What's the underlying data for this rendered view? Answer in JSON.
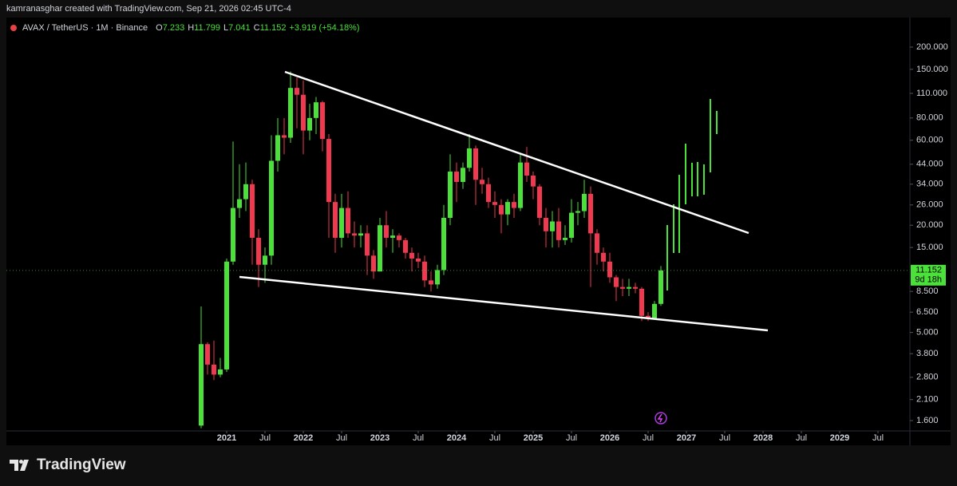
{
  "caption": "kamranasghar created with TradingView.com, Sep 21, 2026 02:45 UTC-4",
  "footer": "TradingView",
  "chart_data": {
    "type": "candlestick",
    "symbol": "AVAX / TetherUS · 1M · Binance",
    "ohlc_legend": [
      {
        "label": "O",
        "value": 7.233
      },
      {
        "label": "H",
        "value": 11.799
      },
      {
        "label": "L",
        "value": 7.041
      },
      {
        "label": "C",
        "value": 11.152
      }
    ],
    "change": "+3.919 (+54.18%)",
    "x": [
      "2020-09",
      "2020-10",
      "2020-11",
      "2020-12",
      "2021-01",
      "2021-02",
      "2021-03",
      "2021-04",
      "2021-05",
      "2021-06",
      "2021-07",
      "2021-08",
      "2021-09",
      "2021-10",
      "2021-11",
      "2021-12",
      "2022-01",
      "2022-02",
      "2022-03",
      "2022-04",
      "2022-05",
      "2022-06",
      "2022-07",
      "2022-08",
      "2022-09",
      "2022-10",
      "2022-11",
      "2022-12",
      "2023-01",
      "2023-02",
      "2023-03",
      "2023-04",
      "2023-05",
      "2023-06",
      "2023-07",
      "2023-08",
      "2023-09",
      "2023-10",
      "2023-11",
      "2023-12",
      "2024-01",
      "2024-02",
      "2024-03",
      "2024-04",
      "2024-05",
      "2024-06",
      "2024-07",
      "2024-08",
      "2024-09",
      "2024-10",
      "2024-11",
      "2024-12",
      "2025-01",
      "2025-02",
      "2025-03",
      "2025-04",
      "2025-05",
      "2025-06",
      "2025-07",
      "2025-08",
      "2025-09",
      "2025-10",
      "2025-11",
      "2025-12",
      "2026-01",
      "2026-02",
      "2026-03",
      "2026-04",
      "2026-05",
      "2026-06",
      "2026-07",
      "2026-08",
      "2026-09"
    ],
    "open": [
      1.5,
      4.3,
      3.3,
      2.9,
      3.1,
      12.5,
      25,
      28,
      34,
      17,
      12,
      13.5,
      46,
      64,
      62,
      118,
      108,
      68,
      80,
      98,
      61,
      27,
      17,
      25,
      18,
      17.5,
      18,
      13.5,
      11,
      20,
      17,
      17.5,
      16.5,
      14,
      13,
      12.5,
      9.8,
      9.3,
      11.2,
      22,
      40,
      35,
      42,
      54,
      36,
      34,
      27,
      26,
      23,
      27,
      25,
      45,
      38,
      33,
      22,
      18.5,
      21,
      16.5,
      17,
      23.5,
      24,
      30,
      18,
      14,
      12.5,
      10.2,
      9,
      8.8,
      9,
      8.8,
      6.2,
      6.0,
      7.233
    ],
    "high": [
      7.0,
      4.4,
      4.5,
      3.6,
      13,
      59,
      44,
      45,
      36,
      19,
      15,
      64,
      80,
      80,
      146,
      135,
      130,
      96,
      105,
      100,
      65,
      30,
      30,
      31,
      21,
      20,
      20,
      14.5,
      22,
      24,
      19,
      18,
      17,
      15,
      14,
      13.5,
      11,
      12,
      26,
      50,
      45,
      45,
      65,
      56,
      42,
      37,
      31,
      28,
      28,
      30,
      50,
      55,
      40,
      34,
      25,
      24,
      25,
      20,
      28,
      27,
      36,
      33,
      19,
      15,
      14,
      10.5,
      10,
      10,
      9.5,
      9,
      6.5,
      7.5,
      11.799
    ],
    "low": [
      1.45,
      2.9,
      2.7,
      2.8,
      3.0,
      12,
      22,
      24,
      12,
      9,
      9.5,
      12,
      40,
      50,
      58,
      70,
      50,
      60,
      65,
      52,
      17,
      14,
      15,
      17,
      15,
      15,
      10.5,
      10,
      11,
      15,
      14,
      15,
      13,
      11,
      11.5,
      9,
      8.5,
      8.8,
      10.5,
      20,
      27,
      32,
      40,
      26,
      30,
      25,
      22,
      18,
      20,
      22,
      24,
      35,
      28,
      20,
      15,
      15,
      15,
      15.5,
      16,
      20,
      22,
      9,
      12,
      11,
      9.5,
      7.5,
      8,
      8,
      8.3,
      5.8,
      5.8,
      5.9,
      7.041
    ],
    "close": [
      4.3,
      3.3,
      2.9,
      3.1,
      12.5,
      25,
      28,
      34,
      17,
      12,
      13.5,
      46,
      64,
      62,
      118,
      108,
      68,
      80,
      98,
      61,
      27,
      17,
      25,
      18,
      17.5,
      18,
      13.5,
      11,
      20,
      17,
      17.5,
      16.5,
      14,
      13,
      12.5,
      9.8,
      9.3,
      11.2,
      22,
      40,
      35,
      42,
      54,
      36,
      34,
      27,
      26,
      23,
      27,
      25,
      45,
      38,
      33,
      22,
      18.5,
      21,
      16.5,
      17,
      23.5,
      24,
      30,
      18,
      14,
      12.5,
      10.2,
      9,
      8.8,
      9,
      8.8,
      6.2,
      6.0,
      7.233,
      11.152
    ],
    "up_color": "#4be13a",
    "down_color": "#f0384e",
    "log_scale": true,
    "ylim": [
      1.4,
      293
    ],
    "yticks": [
      {
        "value": 1.6,
        "label": "1.600"
      },
      {
        "value": 2.1,
        "label": "2.100"
      },
      {
        "value": 2.8,
        "label": "2.800"
      },
      {
        "value": 3.8,
        "label": "3.800"
      },
      {
        "value": 5,
        "label": "5.000"
      },
      {
        "value": 6.5,
        "label": "6.500"
      },
      {
        "value": 8.5,
        "label": "8.500"
      },
      {
        "value": 15,
        "label": "15.000"
      },
      {
        "value": 20,
        "label": "20.000"
      },
      {
        "value": 26,
        "label": "26.000"
      },
      {
        "value": 34,
        "label": "34.000"
      },
      {
        "value": 44,
        "label": "44.000"
      },
      {
        "value": 60,
        "label": "60.000"
      },
      {
        "value": 80,
        "label": "80.000"
      },
      {
        "value": 110,
        "label": "110.000"
      },
      {
        "value": 150,
        "label": "150.000"
      },
      {
        "value": 200,
        "label": "200.000"
      }
    ],
    "xticks": [
      {
        "value": "2021-01",
        "label": "2021"
      },
      {
        "value": "2021-07",
        "label": "Jul"
      },
      {
        "value": "2022-01",
        "label": "2022"
      },
      {
        "value": "2022-07",
        "label": "Jul"
      },
      {
        "value": "2023-01",
        "label": "2023"
      },
      {
        "value": "2023-07",
        "label": "Jul"
      },
      {
        "value": "2024-01",
        "label": "2024"
      },
      {
        "value": "2024-07",
        "label": "Jul"
      },
      {
        "value": "2025-01",
        "label": "2025"
      },
      {
        "value": "2025-07",
        "label": "Jul"
      },
      {
        "value": "2026-01",
        "label": "2026"
      },
      {
        "value": "2026-07",
        "label": "Jul"
      },
      {
        "value": "2027-01",
        "label": "2027"
      },
      {
        "value": "2027-07",
        "label": "Jul"
      },
      {
        "value": "2028-01",
        "label": "2028"
      },
      {
        "value": "2028-07",
        "label": "Jul"
      },
      {
        "value": "2029-01",
        "label": "2029"
      },
      {
        "value": "2029-07",
        "label": "Jul"
      }
    ],
    "last_price": 11.152,
    "countdown": "9d 18h"
  }
}
